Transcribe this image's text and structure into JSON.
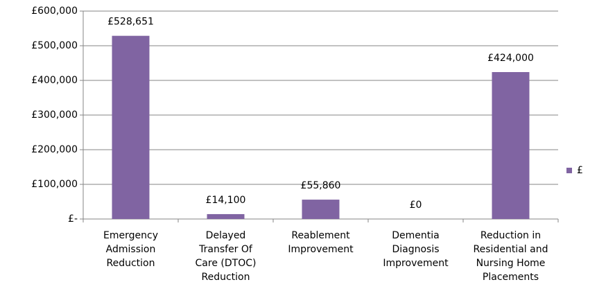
{
  "chart_data": {
    "type": "bar",
    "categories": [
      "Emergency Admission Reduction",
      "Delayed Transfer Of Care (DTOC) Reduction",
      "Reablement Improvement",
      "Dementia Diagnosis Improvement",
      "Reduction in Residential and Nursing Home Placements"
    ],
    "series": [
      {
        "name": "£",
        "color": "#8064a2",
        "values": [
          528651,
          14100,
          55860,
          0,
          424000
        ],
        "value_labels": [
          "£528,651",
          "£14,100",
          "£55,860",
          "£0",
          "£424,000"
        ]
      }
    ],
    "ylim": [
      0,
      600000
    ],
    "yticks": [
      {
        "value": 0,
        "label": "£-"
      },
      {
        "value": 100000,
        "label": "£100,000"
      },
      {
        "value": 200000,
        "label": "£200,000"
      },
      {
        "value": 300000,
        "label": "£300,000"
      },
      {
        "value": 400000,
        "label": "£400,000"
      },
      {
        "value": 500000,
        "label": "£500,000"
      },
      {
        "value": 600000,
        "label": "£600,000"
      }
    ],
    "grid": true,
    "legend": "right"
  }
}
